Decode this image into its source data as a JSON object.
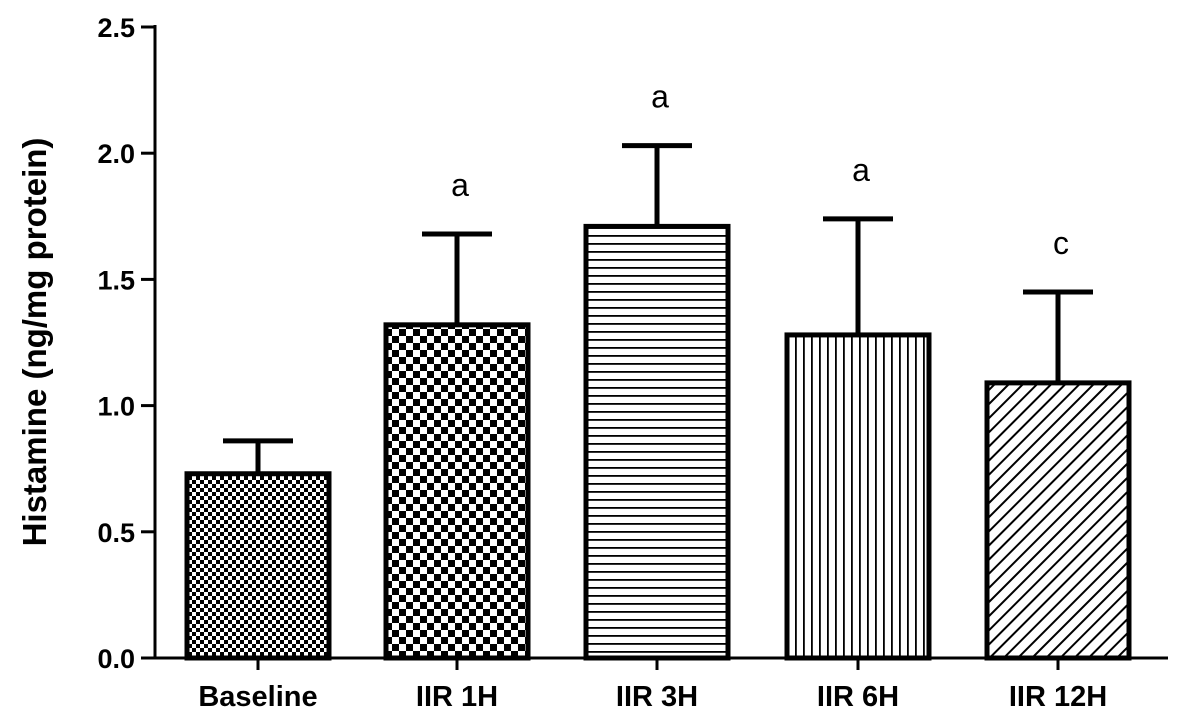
{
  "chart_data": {
    "type": "bar",
    "title": "",
    "xlabel": "",
    "ylabel": "Histamine (ng/mg protein)",
    "ylim": [
      0,
      2.5
    ],
    "yticks": [
      "0.0",
      "0.5",
      "1.0",
      "1.5",
      "2.0",
      "2.5"
    ],
    "categories": [
      "Baseline",
      "IIR 1H",
      "IIR 3H",
      "IIR 6H",
      "IIR 12H"
    ],
    "values": [
      0.73,
      1.32,
      1.71,
      1.28,
      1.09
    ],
    "error_upper": [
      0.13,
      0.36,
      0.32,
      0.46,
      0.36
    ],
    "annotations": [
      "",
      "a",
      "a",
      "a",
      "c"
    ],
    "patterns": [
      "fine-checker",
      "checker",
      "horizontal-lines",
      "vertical-lines",
      "diagonal-lines"
    ],
    "grid": false,
    "legend": "none"
  }
}
